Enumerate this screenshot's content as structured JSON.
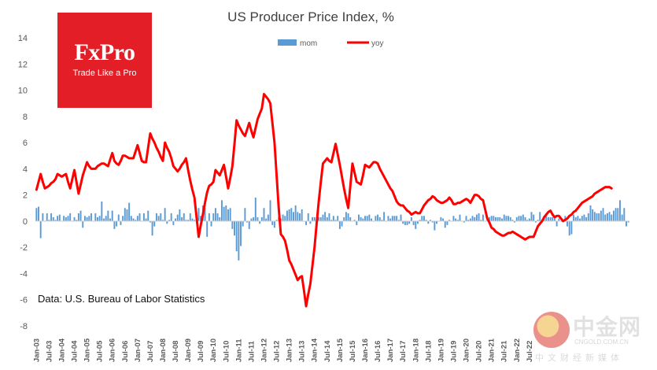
{
  "chart_data": {
    "type": "bar+line",
    "title": "US Producer Price Index, %",
    "source_note": "Data: U.S. Bureau of Labor Statistics",
    "legend": {
      "position": "top-center",
      "entries": [
        "mom",
        "yoy"
      ]
    },
    "ylim": [
      -8,
      14
    ],
    "yticks": [
      "14",
      "12",
      "10",
      "8",
      "6",
      "4",
      "2",
      "0",
      "-2",
      "-4",
      "-6",
      "-8"
    ],
    "ytick_values": [
      14,
      12,
      10,
      8,
      6,
      4,
      2,
      0,
      -2,
      -4,
      -6,
      -8
    ],
    "start": "Jan-03",
    "xtick_labels": [
      "Jan-03",
      "Jul-03",
      "Jan-04",
      "Jul-04",
      "Jan-05",
      "Jul-05",
      "Jan-06",
      "Jul-06",
      "Jan-07",
      "Jul-07",
      "Jan-08",
      "Jul-08",
      "Jan-09",
      "Jul-09",
      "Jan-10",
      "Jul-10",
      "Jan-11",
      "Jul-11",
      "Jan-12",
      "Jul-12",
      "Jan-13",
      "Jul-13",
      "Jan-14",
      "Jul-14",
      "Jan-15",
      "Jul-15",
      "Jan-16",
      "Jul-16",
      "Jan-17",
      "Jul-17",
      "Jan-18",
      "Jul-18",
      "Jan-19",
      "Jul-19",
      "Jan-20",
      "Jul-20",
      "Jan-21",
      "Jul-21",
      "Jan-22",
      "Jul-22"
    ],
    "series_colors": {
      "mom": "#5b9bd5",
      "yoy": "#ff0000"
    },
    "series": [
      {
        "name": "mom",
        "type": "bar",
        "monthly_values": [
          1.0,
          1.1,
          -1.3,
          0.6,
          0.0,
          0.6,
          0.1,
          0.6,
          0.3,
          0.1,
          0.4,
          0.5,
          0.0,
          0.4,
          0.3,
          0.4,
          0.6,
          0.0,
          0.3,
          0.1,
          0.6,
          0.8,
          -0.5,
          0.4,
          0.3,
          0.4,
          0.6,
          0.0,
          0.6,
          0.3,
          0.4,
          1.5,
          0.2,
          0.4,
          0.8,
          0.2,
          0.8,
          -0.6,
          -0.4,
          0.5,
          -0.3,
          0.4,
          1.0,
          0.9,
          1.4,
          0.4,
          0.2,
          0.1,
          0.4,
          0.6,
          0.0,
          0.6,
          0.2,
          0.8,
          -0.1,
          -1.1,
          -0.4,
          0.6,
          0.4,
          0.6,
          0.1,
          1.0,
          -0.2,
          0.1,
          0.6,
          -0.3,
          0.2,
          0.5,
          0.9,
          0.3,
          0.6,
          0.1,
          0.1,
          0.6,
          0.2,
          0.1,
          0.7,
          1.0,
          0.4,
          1.2,
          1.0,
          -1.2,
          0.6,
          -0.4,
          0.6,
          1.0,
          0.6,
          0.3,
          1.6,
          1.1,
          1.2,
          0.9,
          1.0,
          -0.6,
          -1.1,
          -2.3,
          -3.0,
          -1.9,
          -0.4,
          1.0,
          -0.1,
          -0.6,
          0.2,
          0.3,
          1.8,
          0.3,
          -0.2,
          0.3,
          1.0,
          0.2,
          0.5,
          1.6,
          -0.3,
          -0.5,
          0.1,
          0.3,
          0.2,
          0.5,
          0.4,
          0.8,
          0.9,
          1.0,
          0.7,
          1.2,
          0.7,
          0.6,
          0.9,
          0.0,
          -0.3,
          0.6,
          -0.2,
          0.3,
          0.3,
          0.1,
          0.3,
          0.3,
          0.5,
          0.7,
          0.3,
          0.6,
          0.1,
          0.4,
          0.1,
          0.4,
          -0.6,
          -0.4,
          0.3,
          0.7,
          0.6,
          0.3,
          0.0,
          0.1,
          -0.3,
          0.5,
          0.3,
          0.2,
          0.4,
          0.4,
          0.5,
          0.2,
          0.0,
          0.4,
          0.5,
          0.3,
          0.1,
          0.7,
          0.0,
          0.4,
          0.2,
          0.4,
          0.4,
          0.4,
          0.1,
          0.5,
          -0.2,
          -0.3,
          -0.3,
          -0.2,
          0.3,
          -0.3,
          -0.6,
          -0.2,
          0.1,
          0.4,
          0.4,
          0.1,
          -0.2,
          0.1,
          -0.1,
          -0.7,
          -0.2,
          0.0,
          0.3,
          0.2,
          -0.5,
          -0.3,
          0.1,
          0.0,
          0.4,
          0.2,
          0.1,
          0.5,
          0.0,
          -0.1,
          0.4,
          0.1,
          0.2,
          0.4,
          0.3,
          0.5,
          0.6,
          0.1,
          0.5,
          0.0,
          0.1,
          0.3,
          0.4,
          0.4,
          0.3,
          0.3,
          0.3,
          0.2,
          0.5,
          0.4,
          0.4,
          0.3,
          0.1,
          -0.1,
          0.3,
          0.4,
          0.4,
          0.5,
          0.3,
          0.1,
          0.2,
          0.7,
          0.5,
          -0.1,
          0.1,
          0.7,
          0.1,
          0.4,
          0.6,
          0.3,
          0.3,
          0.3,
          0.2,
          -0.4,
          0.2,
          0.0,
          0.0,
          0.4,
          -0.4,
          -1.1,
          -1.0,
          0.5,
          0.3,
          0.4,
          0.2,
          0.4,
          0.5,
          0.3,
          0.6,
          1.2,
          0.9,
          0.7,
          0.6,
          0.6,
          0.8,
          1.0,
          0.5,
          0.6,
          0.7,
          0.5,
          0.8,
          1.0,
          1.0,
          1.6,
          0.5,
          1.0,
          -0.4,
          -0.1
        ],
        "values": [
          1.0,
          1.1,
          -1.3,
          0.6,
          0.0,
          0.6,
          0.1,
          0.6,
          0.3,
          0.1,
          0.4,
          0.5,
          0.0,
          0.4,
          0.3,
          0.4,
          0.6,
          0.0,
          0.3,
          0.1,
          0.6,
          0.8,
          -0.5,
          0.4,
          0.3,
          0.4,
          0.6,
          0.0,
          0.6,
          0.3,
          0.4,
          1.5,
          0.2,
          0.4,
          0.8,
          0.2,
          0.8,
          -0.6,
          -0.4,
          0.5,
          -0.3,
          0.4,
          1.0,
          0.9,
          1.4,
          0.4,
          0.2,
          0.1,
          0.4,
          0.6,
          0.0,
          0.6,
          0.2,
          0.8,
          -0.1,
          -1.1,
          -0.4,
          0.6,
          0.4,
          0.6,
          0.1,
          1.0,
          -0.2,
          0.1,
          0.6,
          -0.3,
          0.2,
          0.5,
          0.9,
          0.3,
          0.6,
          0.1,
          0.1,
          0.6,
          0.2,
          0.1,
          0.7,
          1.0,
          0.4,
          1.2,
          1.0,
          -1.2,
          0.6,
          -0.4,
          0.6,
          1.0,
          0.6,
          0.3,
          1.6,
          1.1,
          1.2,
          0.9,
          1.0,
          -0.6,
          -1.1,
          -2.3,
          -3.0,
          -1.9,
          -0.4,
          1.0,
          -0.1,
          -0.6,
          0.2,
          0.3,
          1.8,
          0.3,
          -0.2,
          0.3,
          1.0,
          0.2,
          0.5,
          1.6,
          -0.3,
          -0.5,
          0.1,
          0.3,
          0.2,
          0.5,
          0.4,
          0.8,
          0.9,
          1.0,
          0.7,
          1.2,
          0.7,
          0.6,
          0.9,
          0.0,
          -0.3,
          0.6,
          -0.2,
          0.3,
          0.3,
          0.1,
          0.3,
          0.3,
          0.5,
          0.7,
          0.3,
          0.6,
          0.1,
          0.4,
          0.1,
          0.4,
          -0.6,
          -0.4,
          0.3,
          0.7,
          0.6,
          0.3,
          0.0,
          0.1,
          -0.3,
          0.5,
          0.3,
          0.2,
          0.4,
          0.4,
          0.5,
          0.2,
          0.0,
          0.4,
          0.5,
          0.3,
          0.1,
          0.7,
          0.0,
          0.4,
          0.2,
          0.4,
          0.4,
          0.4,
          0.1,
          0.5,
          -0.2,
          -0.3,
          -0.3,
          -0.2,
          0.3,
          -0.3,
          -0.6,
          -0.2,
          0.1,
          0.4,
          0.4,
          0.1,
          -0.2,
          0.1,
          -0.1,
          -0.7,
          -0.2,
          0.0,
          0.3,
          0.2,
          -0.5,
          -0.3,
          0.1,
          0.0,
          0.4,
          0.2,
          0.1,
          0.5,
          0.0,
          -0.1,
          0.4,
          0.1,
          0.2,
          0.4,
          0.3,
          0.5,
          0.6,
          0.1,
          0.5,
          0.0,
          0.1,
          0.3,
          0.4,
          0.4,
          0.3,
          0.3,
          0.3,
          0.2,
          0.5,
          0.4,
          0.4,
          0.3,
          0.1,
          -0.1,
          0.3,
          0.4,
          0.4,
          0.5,
          0.3,
          0.1,
          0.2,
          0.7,
          0.5,
          -0.1,
          0.1,
          0.7,
          0.1,
          0.4,
          0.6,
          0.3,
          0.3,
          0.3,
          0.2,
          -0.4,
          0.2,
          0.0,
          0.0,
          0.4,
          -0.4,
          -1.1,
          -1.0,
          0.5,
          0.3,
          0.4,
          0.2,
          0.4,
          0.5,
          0.3,
          0.6,
          1.2,
          0.9,
          0.7,
          0.6,
          0.6,
          0.8,
          1.0,
          0.5,
          0.6,
          0.7,
          0.5,
          0.8,
          1.0,
          1.0,
          1.6,
          0.5,
          1.0,
          -0.4,
          -0.1
        ]
      },
      {
        "name": "yoy",
        "type": "line",
        "anchor_x": [
          0,
          2,
          4,
          6,
          8,
          10,
          12,
          14,
          16,
          18,
          20,
          22,
          24,
          26,
          28,
          30,
          32,
          34,
          36,
          37,
          39,
          41,
          43,
          45,
          47,
          49,
          51,
          53,
          55,
          57,
          59,
          60,
          62,
          64,
          66,
          68,
          70,
          72,
          74,
          76,
          78,
          80,
          81,
          83,
          84,
          86,
          88,
          90,
          92,
          94,
          96,
          98,
          100,
          102,
          103,
          105,
          107,
          108,
          110,
          112,
          114,
          116,
          118,
          120,
          122,
          124,
          126,
          128,
          130,
          132,
          134,
          136,
          138,
          140,
          144,
          148,
          152,
          156,
          160,
          164,
          168,
          172,
          176,
          180,
          184,
          188,
          190,
          192,
          194,
          196,
          198,
          200,
          202,
          204,
          206,
          208,
          210,
          212,
          214,
          216,
          220,
          224,
          228,
          232,
          236,
          240,
          244,
          248,
          252,
          256,
          260,
          264,
          266,
          268,
          270,
          272,
          274,
          276,
          278,
          280,
          282,
          284,
          286,
          288,
          290,
          292,
          294,
          296,
          298,
          300,
          302,
          304,
          306,
          308,
          310,
          312,
          314,
          316,
          318,
          320,
          322,
          323
        ],
        "anchor_y": [
          2.4,
          3.6,
          2.5,
          2.7,
          3.0,
          3.6,
          3.4,
          3.6,
          2.5,
          3.9,
          2.1,
          3.5,
          4.5,
          4.0,
          4.0,
          4.3,
          4.4,
          4.2,
          5.2,
          4.6,
          4.3,
          5.0,
          4.9,
          4.8,
          5.8,
          4.6,
          4.5,
          6.7,
          6.0,
          5.3,
          4.6,
          6.0,
          5.3,
          4.2,
          3.8,
          4.3,
          4.8,
          3.1,
          1.8,
          -1.2,
          0.5,
          2.2,
          2.7,
          3.0,
          3.9,
          3.5,
          4.3,
          2.5,
          4.2,
          7.7,
          7.0,
          6.5,
          7.5,
          6.4,
          7.8,
          8.6,
          9.7,
          9.5,
          9.0,
          6.0,
          1.0,
          -1.0,
          -1.5,
          -3.0,
          -3.7,
          -4.5,
          -4.2,
          -6.5,
          -4.8,
          -2.0,
          1.5,
          4.4,
          4.8,
          4.5,
          5.9,
          4.3,
          2.5,
          1.0,
          4.4,
          3.0,
          2.8,
          4.3,
          4.1,
          4.5,
          4.4,
          3.7,
          3.4,
          2.8,
          2.3,
          1.5,
          1.2,
          1.2,
          0.8,
          0.5,
          0.7,
          0.6,
          1.2,
          1.6,
          1.9,
          1.6,
          1.4,
          1.5,
          1.8,
          1.3,
          1.4,
          1.5,
          1.7,
          1.4,
          2.0,
          1.9,
          1.6,
          0.2,
          -0.5,
          -0.8,
          -1.0,
          -1.1,
          -0.9,
          -0.8,
          -1.0,
          -1.2,
          -1.4,
          -1.2,
          -1.2,
          -0.4,
          0.0,
          0.5,
          0.8,
          0.3,
          0.4,
          0.0,
          0.2,
          0.5,
          0.8,
          1.2,
          1.5,
          1.7,
          1.9,
          2.2,
          2.4,
          2.6,
          2.6,
          2.5
        ],
        "yoy_note": "estimated monthly yoy %, Jan-03 onward"
      }
    ]
  },
  "yoy_monthly": [
    2.4,
    3.0,
    3.6,
    3.0,
    2.5,
    2.6,
    2.7,
    2.9,
    3.0,
    3.2,
    3.6,
    3.5,
    3.4,
    3.5,
    3.6,
    3.0,
    2.5,
    3.2,
    3.9,
    3.0,
    2.1,
    2.8,
    3.5,
    4.0,
    4.5,
    4.2,
    4.0,
    4.0,
    4.0,
    4.2,
    4.3,
    4.4,
    4.4,
    4.3,
    4.2,
    4.7,
    5.2,
    4.6,
    4.4,
    4.3,
    4.6,
    5.0,
    5.0,
    4.9,
    4.8,
    4.8,
    4.8,
    5.3,
    5.8,
    5.2,
    4.6,
    4.5,
    4.5,
    5.6,
    6.7,
    6.3,
    6.0,
    5.6,
    5.3,
    4.9,
    4.6,
    6.0,
    5.6,
    5.3,
    4.8,
    4.2,
    4.0,
    3.8,
    4.0,
    4.3,
    4.5,
    4.8,
    3.9,
    3.1,
    2.4,
    1.8,
    0.3,
    -1.2,
    -0.3,
    0.5,
    1.4,
    2.2,
    2.7,
    2.8,
    3.0,
    3.9,
    3.7,
    3.5,
    3.9,
    4.3,
    3.4,
    2.5,
    3.3,
    4.2,
    5.9,
    7.7,
    7.3,
    7.0,
    6.7,
    6.5,
    7.0,
    7.5,
    6.9,
    6.4,
    7.1,
    7.8,
    8.2,
    8.6,
    9.7,
    9.5,
    9.3,
    9.0,
    7.5,
    6.0,
    3.5,
    1.0,
    -1.0,
    -1.2,
    -1.5,
    -2.2,
    -3.0,
    -3.3,
    -3.7,
    -4.1,
    -4.5,
    -4.3,
    -4.2,
    -5.3,
    -6.5,
    -5.6,
    -4.8,
    -3.4,
    -2.0,
    -0.2,
    1.5,
    3.0,
    4.4,
    4.6,
    4.8,
    4.6,
    4.5,
    5.2,
    5.9,
    5.1,
    4.3,
    3.4,
    2.5,
    1.7,
    1.0,
    2.7,
    4.4,
    3.7,
    3.0,
    2.9,
    2.8,
    3.5,
    4.3,
    4.2,
    4.1,
    4.3,
    4.5,
    4.5,
    4.4,
    4.0,
    3.7,
    3.4,
    3.1,
    2.8,
    2.5,
    2.3,
    1.9,
    1.5,
    1.3,
    1.2,
    1.2,
    1.0,
    0.8,
    0.7,
    0.5,
    0.6,
    0.7,
    0.6,
    0.6,
    0.9,
    1.2,
    1.4,
    1.6,
    1.7,
    1.9,
    1.8,
    1.6,
    1.5,
    1.4,
    1.4,
    1.5,
    1.6,
    1.8,
    1.6,
    1.3,
    1.3,
    1.4,
    1.4,
    1.5,
    1.6,
    1.7,
    1.6,
    1.4,
    1.7,
    2.0,
    2.0,
    1.9,
    1.7,
    1.6,
    0.9,
    0.2,
    -0.1,
    -0.5,
    -0.6,
    -0.8,
    -0.9,
    -1.0,
    -1.1,
    -1.1,
    -1.0,
    -0.9,
    -0.9,
    -0.8,
    -0.9,
    -1.0,
    -1.1,
    -1.2,
    -1.3,
    -1.4,
    -1.3,
    -1.2,
    -1.2,
    -1.2,
    -0.8,
    -0.4,
    -0.2,
    0.0,
    0.3,
    0.5,
    0.7,
    0.8,
    0.5,
    0.3,
    0.4,
    0.4,
    0.2,
    0.0,
    0.1,
    0.2,
    0.4,
    0.5,
    0.7,
    0.8,
    1.0,
    1.2,
    1.4,
    1.5,
    1.6,
    1.7,
    1.8,
    1.9,
    2.1,
    2.2,
    2.3,
    2.4,
    2.5,
    2.6,
    2.6,
    2.6,
    2.5
  ],
  "fx_logo": {
    "name": "FxPro",
    "tagline": "Trade Like a Pro",
    "color": "#e41e26"
  },
  "watermark": {
    "main": "中金网",
    "url": "CNGOLD.COM.CN",
    "sub": "中文财经新媒体"
  }
}
